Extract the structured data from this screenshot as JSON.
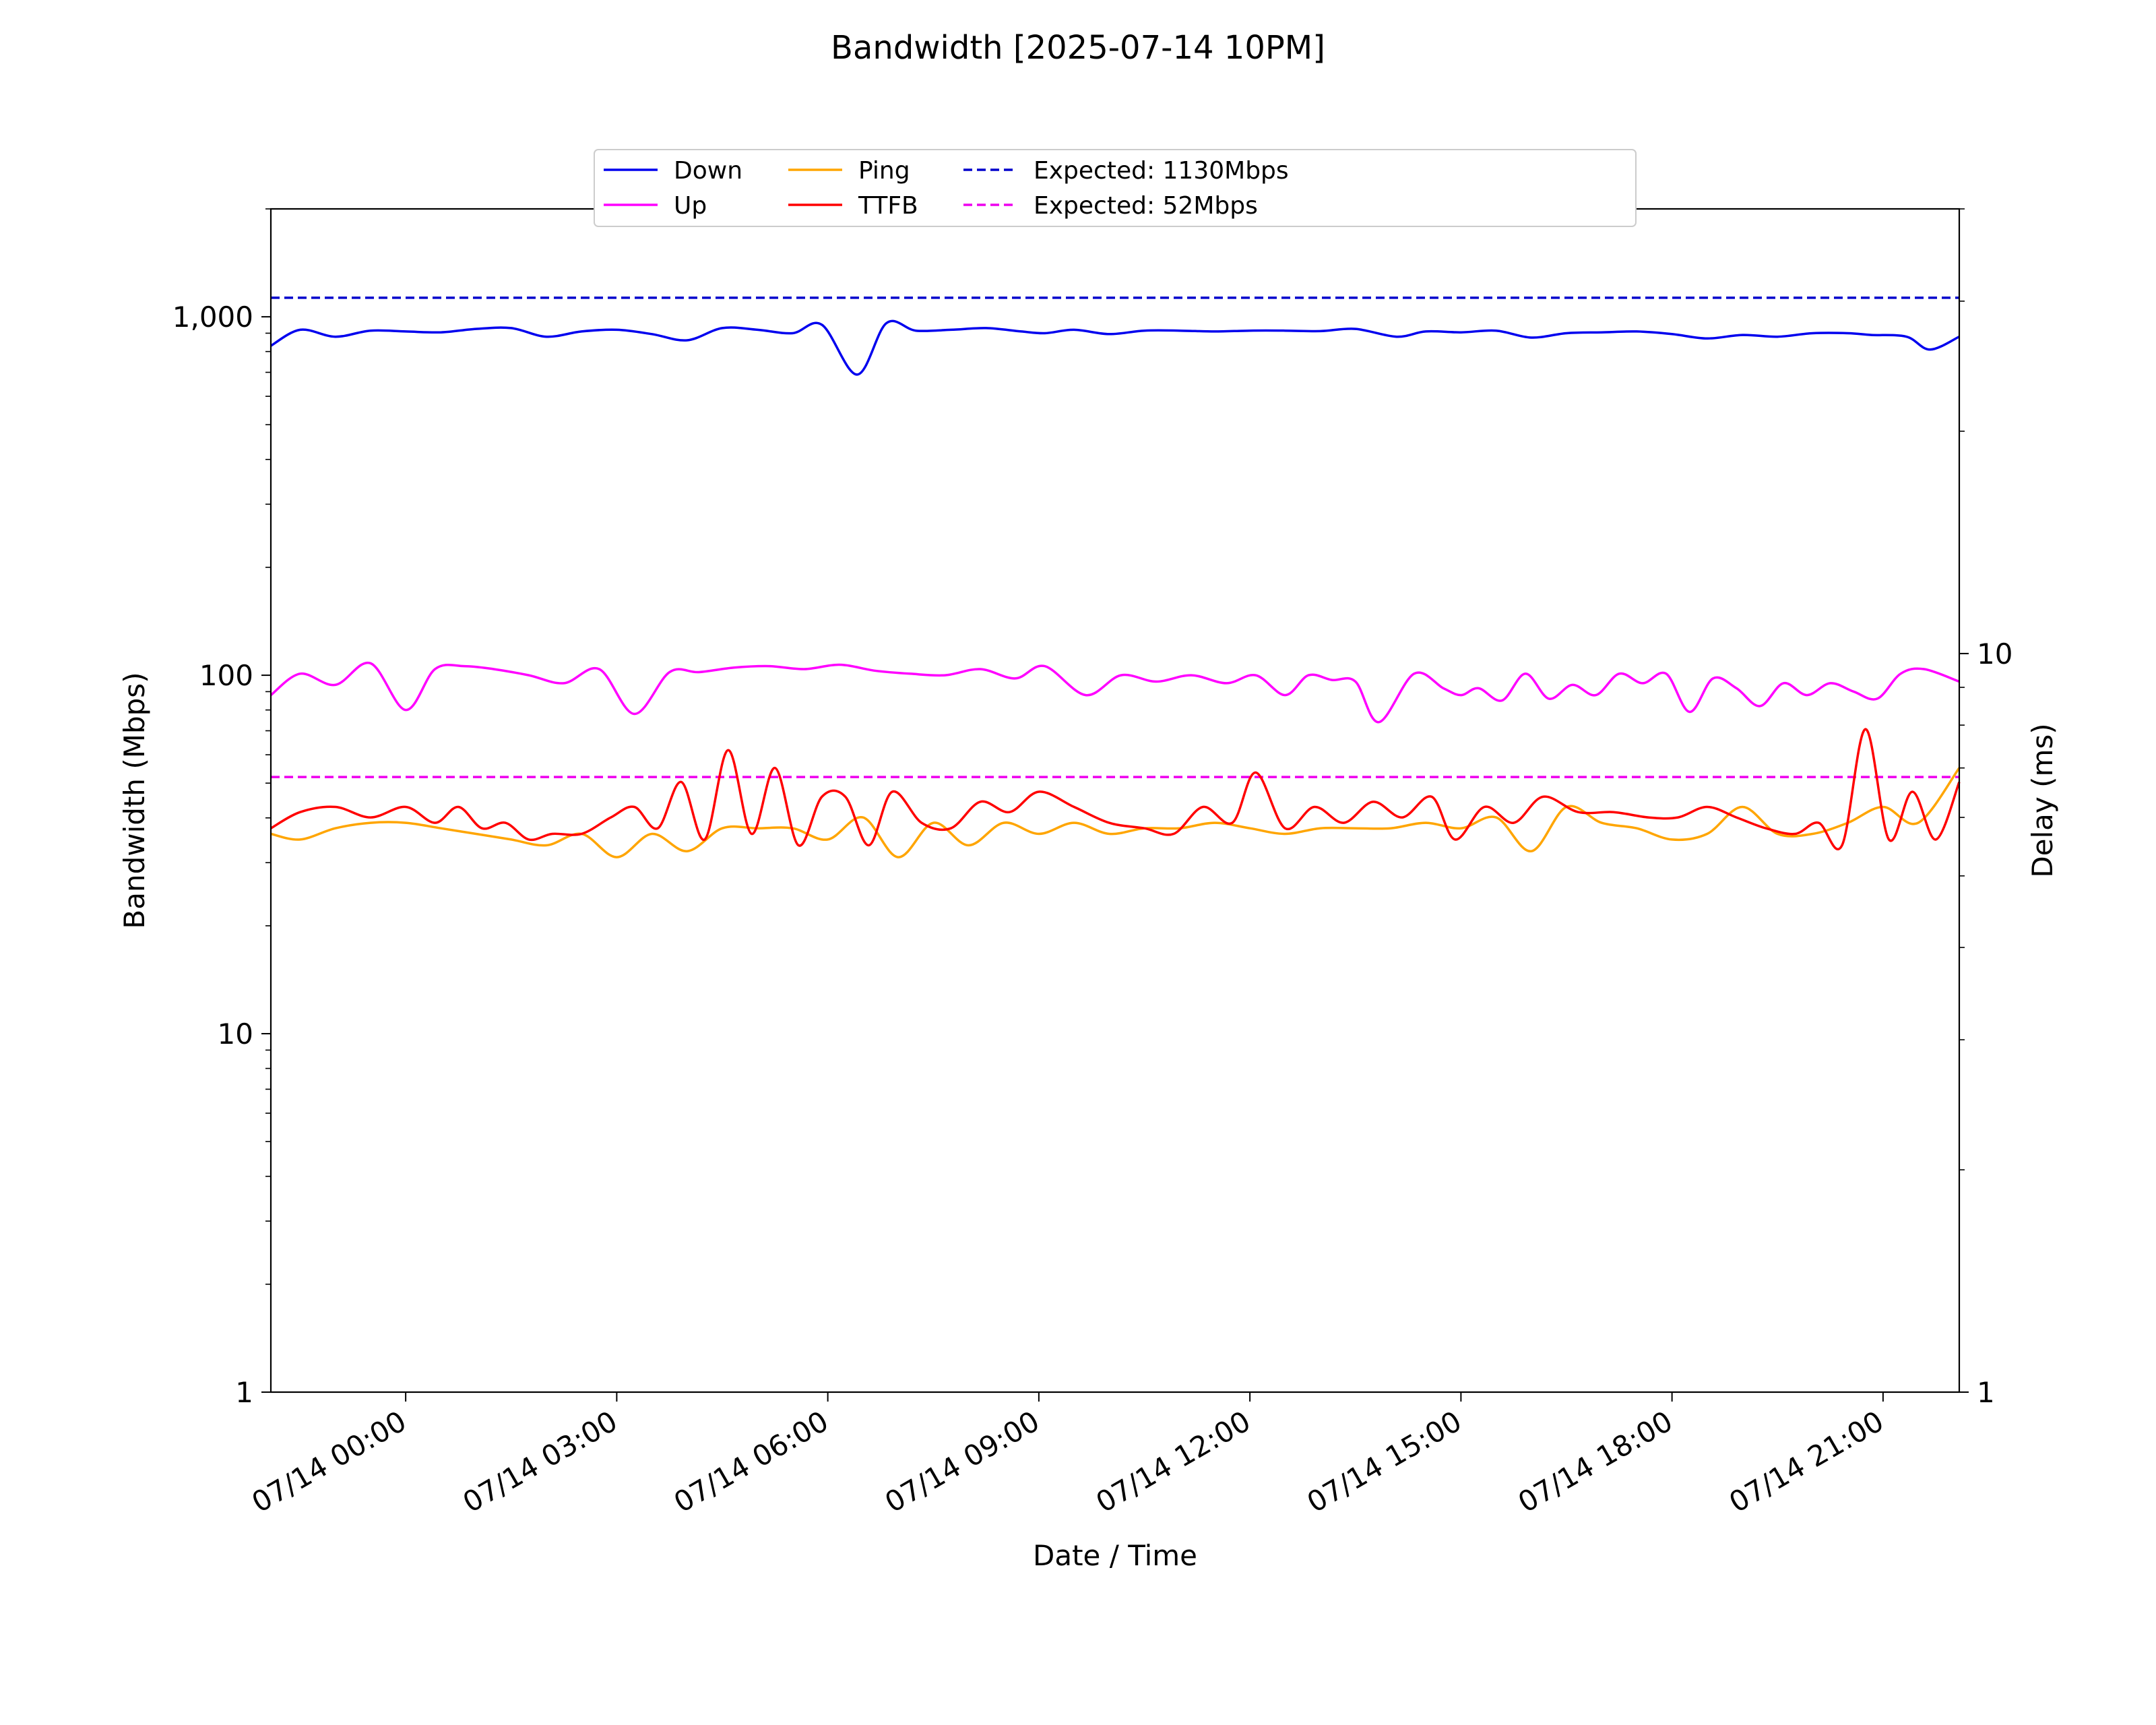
{
  "chart_data": {
    "type": "line",
    "title": "Bandwidth [2025-07-14 10PM]",
    "xlabel": "Date / Time",
    "ylabel": "Bandwidth (Mbps)",
    "y2label": "Delay (ms)",
    "x_range": [
      "07/13 22:05",
      "07/14 22:05"
    ],
    "x_ticks": [
      {
        "t": "07/14 00:00",
        "label": "07/14 00:00"
      },
      {
        "t": "07/14 03:00",
        "label": "07/14 03:00"
      },
      {
        "t": "07/14 06:00",
        "label": "07/14 06:00"
      },
      {
        "t": "07/14 09:00",
        "label": "07/14 09:00"
      },
      {
        "t": "07/14 12:00",
        "label": "07/14 12:00"
      },
      {
        "t": "07/14 15:00",
        "label": "07/14 15:00"
      },
      {
        "t": "07/14 18:00",
        "label": "07/14 18:00"
      },
      {
        "t": "07/14 21:00",
        "label": "07/14 21:00"
      }
    ],
    "y_scale": "log",
    "ylim": [
      1,
      2000
    ],
    "y_ticks": [
      {
        "v": 1,
        "label": "1"
      },
      {
        "v": 10,
        "label": "10"
      },
      {
        "v": 100,
        "label": "100"
      },
      {
        "v": 1000,
        "label": "1,000"
      }
    ],
    "y2_scale": "log",
    "y2lim": [
      1,
      40
    ],
    "y2_ticks": [
      {
        "v": 1,
        "label": "1"
      },
      {
        "v": 10,
        "label": "10"
      }
    ],
    "legend": {
      "position": "top-center",
      "ncol": 4
    },
    "reference_lines": [
      {
        "name": "Expected: 1130Mbps",
        "value": 1130,
        "axis": "left",
        "color": "#0000cc",
        "style": "dashed"
      },
      {
        "name": "Expected: 52Mbps",
        "value": 52,
        "axis": "left",
        "color": "#ee00ee",
        "style": "dashed"
      }
    ],
    "series": [
      {
        "name": "Down",
        "axis": "left",
        "color": "#0000ee",
        "x": [
          "07/13 22:05",
          "07/13 22:30",
          "07/13 23:00",
          "07/13 23:30",
          "07/14 00:00",
          "07/14 00:30",
          "07/14 01:00",
          "07/14 01:30",
          "07/14 02:00",
          "07/14 02:30",
          "07/14 03:00",
          "07/14 03:30",
          "07/14 04:00",
          "07/14 04:30",
          "07/14 05:00",
          "07/14 05:30",
          "07/14 05:55",
          "07/14 06:25",
          "07/14 06:50",
          "07/14 07:15",
          "07/14 07:45",
          "07/14 08:15",
          "07/14 08:45",
          "07/14 09:05",
          "07/14 09:30",
          "07/14 10:00",
          "07/14 10:30",
          "07/14 11:00",
          "07/14 11:30",
          "07/14 12:00",
          "07/14 12:30",
          "07/14 13:00",
          "07/14 13:30",
          "07/14 14:05",
          "07/14 14:30",
          "07/14 15:00",
          "07/14 15:30",
          "07/14 16:00",
          "07/14 16:30",
          "07/14 17:00",
          "07/14 17:30",
          "07/14 18:00",
          "07/14 18:30",
          "07/14 19:00",
          "07/14 19:30",
          "07/14 20:00",
          "07/14 20:30",
          "07/14 20:50",
          "07/14 21:20",
          "07/14 21:40",
          "07/14 22:05"
        ],
        "values": [
          830,
          920,
          880,
          915,
          910,
          905,
          925,
          930,
          880,
          910,
          920,
          895,
          860,
          930,
          920,
          900,
          950,
          690,
          960,
          915,
          920,
          930,
          910,
          900,
          920,
          895,
          915,
          915,
          910,
          915,
          915,
          912,
          925,
          880,
          910,
          905,
          915,
          875,
          900,
          905,
          910,
          895,
          870,
          890,
          880,
          900,
          900,
          890,
          880,
          810,
          880
        ]
      },
      {
        "name": "Up",
        "axis": "left",
        "color": "#ff00ff",
        "x": [
          "07/13 22:05",
          "07/13 22:30",
          "07/13 23:00",
          "07/13 23:30",
          "07/14 00:00",
          "07/14 00:25",
          "07/14 00:50",
          "07/14 01:15",
          "07/14 01:45",
          "07/14 02:15",
          "07/14 02:45",
          "07/14 03:15",
          "07/14 03:45",
          "07/14 04:10",
          "07/14 04:40",
          "07/14 05:10",
          "07/14 05:40",
          "07/14 06:10",
          "07/14 06:40",
          "07/14 07:10",
          "07/14 07:40",
          "07/14 08:10",
          "07/14 08:40",
          "07/14 09:05",
          "07/14 09:40",
          "07/14 10:10",
          "07/14 10:40",
          "07/14 11:10",
          "07/14 11:40",
          "07/14 12:05",
          "07/14 12:30",
          "07/14 12:50",
          "07/14 13:10",
          "07/14 13:30",
          "07/14 13:50",
          "07/14 14:20",
          "07/14 14:45",
          "07/14 15:00",
          "07/14 15:15",
          "07/14 15:35",
          "07/14 15:55",
          "07/14 16:15",
          "07/14 16:35",
          "07/14 16:55",
          "07/14 17:15",
          "07/14 17:35",
          "07/14 17:55",
          "07/14 18:15",
          "07/14 18:35",
          "07/14 18:55",
          "07/14 19:15",
          "07/14 19:35",
          "07/14 19:55",
          "07/14 20:15",
          "07/14 20:35",
          "07/14 20:55",
          "07/14 21:15",
          "07/14 21:35",
          "07/14 22:05"
        ],
        "values": [
          88,
          101,
          94,
          108,
          80,
          104,
          106,
          104,
          100,
          95,
          104,
          78,
          102,
          102,
          105,
          106,
          104,
          107,
          103,
          101,
          100,
          104,
          98,
          106,
          88,
          100,
          96,
          100,
          95,
          100,
          88,
          100,
          97,
          96,
          74,
          101,
          92,
          88,
          92,
          85,
          101,
          86,
          94,
          88,
          101,
          95,
          101,
          79,
          98,
          92,
          82,
          95,
          88,
          95,
          90,
          86,
          101,
          104,
          96
        ]
      },
      {
        "name": "Ping",
        "axis": "right",
        "color": "#ffa500",
        "x": [
          "07/13 22:05",
          "07/13 22:30",
          "07/13 23:00",
          "07/13 23:30",
          "07/14 00:00",
          "07/14 00:30",
          "07/14 01:00",
          "07/14 01:30",
          "07/14 02:00",
          "07/14 02:30",
          "07/14 03:00",
          "07/14 03:30",
          "07/14 04:00",
          "07/14 04:30",
          "07/14 05:00",
          "07/14 05:30",
          "07/14 06:00",
          "07/14 06:30",
          "07/14 07:00",
          "07/14 07:30",
          "07/14 08:00",
          "07/14 08:30",
          "07/14 09:00",
          "07/14 09:30",
          "07/14 10:00",
          "07/14 10:30",
          "07/14 11:00",
          "07/14 11:30",
          "07/14 12:00",
          "07/14 12:30",
          "07/14 13:00",
          "07/14 13:30",
          "07/14 14:00",
          "07/14 14:30",
          "07/14 15:00",
          "07/14 15:30",
          "07/14 16:00",
          "07/14 16:30",
          "07/14 17:00",
          "07/14 17:30",
          "07/14 18:00",
          "07/14 18:30",
          "07/14 19:00",
          "07/14 19:30",
          "07/14 20:00",
          "07/14 20:30",
          "07/14 21:00",
          "07/14 21:30",
          "07/14 22:05"
        ],
        "values": [
          5.7,
          5.6,
          5.8,
          5.9,
          5.9,
          5.8,
          5.7,
          5.6,
          5.5,
          5.7,
          5.3,
          5.7,
          5.4,
          5.8,
          5.8,
          5.8,
          5.6,
          6.0,
          5.3,
          5.9,
          5.5,
          5.9,
          5.7,
          5.9,
          5.7,
          5.8,
          5.8,
          5.9,
          5.8,
          5.7,
          5.8,
          5.8,
          5.8,
          5.9,
          5.8,
          6.0,
          5.4,
          6.2,
          5.9,
          5.8,
          5.6,
          5.7,
          6.2,
          5.7,
          5.7,
          5.9,
          6.2,
          5.9,
          7.0
        ]
      },
      {
        "name": "TTFB",
        "axis": "right",
        "color": "#ff0000",
        "x": [
          "07/13 22:05",
          "07/13 22:30",
          "07/13 23:00",
          "07/13 23:30",
          "07/14 00:00",
          "07/14 00:25",
          "07/14 00:45",
          "07/14 01:05",
          "07/14 01:25",
          "07/14 01:45",
          "07/14 02:05",
          "07/14 02:30",
          "07/14 02:55",
          "07/14 03:15",
          "07/14 03:35",
          "07/14 03:55",
          "07/14 04:15",
          "07/14 04:35",
          "07/14 04:55",
          "07/14 05:15",
          "07/14 05:35",
          "07/14 05:55",
          "07/14 06:15",
          "07/14 06:35",
          "07/14 06:55",
          "07/14 07:20",
          "07/14 07:45",
          "07/14 08:10",
          "07/14 08:35",
          "07/14 09:00",
          "07/14 09:30",
          "07/14 10:00",
          "07/14 10:30",
          "07/14 10:55",
          "07/14 11:20",
          "07/14 11:45",
          "07/14 12:05",
          "07/14 12:30",
          "07/14 12:55",
          "07/14 13:20",
          "07/14 13:45",
          "07/14 14:10",
          "07/14 14:35",
          "07/14 14:55",
          "07/14 15:20",
          "07/14 15:45",
          "07/14 16:10",
          "07/14 16:40",
          "07/14 17:10",
          "07/14 17:40",
          "07/14 18:05",
          "07/14 18:30",
          "07/14 18:55",
          "07/14 19:20",
          "07/14 19:45",
          "07/14 20:05",
          "07/14 20:25",
          "07/14 20:45",
          "07/14 21:05",
          "07/14 21:25",
          "07/14 21:45",
          "07/14 22:05"
        ],
        "values": [
          5.8,
          6.1,
          6.2,
          6.0,
          6.2,
          5.9,
          6.2,
          5.8,
          5.9,
          5.6,
          5.7,
          5.7,
          6.0,
          6.2,
          5.8,
          6.7,
          5.6,
          7.4,
          5.7,
          7.0,
          5.5,
          6.4,
          6.4,
          5.5,
          6.5,
          5.9,
          5.8,
          6.3,
          6.1,
          6.5,
          6.2,
          5.9,
          5.8,
          5.7,
          6.2,
          5.9,
          6.9,
          5.8,
          6.2,
          5.9,
          6.3,
          6.0,
          6.4,
          5.6,
          6.2,
          5.9,
          6.4,
          6.1,
          6.1,
          6.0,
          6.0,
          6.2,
          6.0,
          5.8,
          5.7,
          5.9,
          5.5,
          7.9,
          5.6,
          6.5,
          5.6,
          6.7
        ]
      }
    ]
  }
}
